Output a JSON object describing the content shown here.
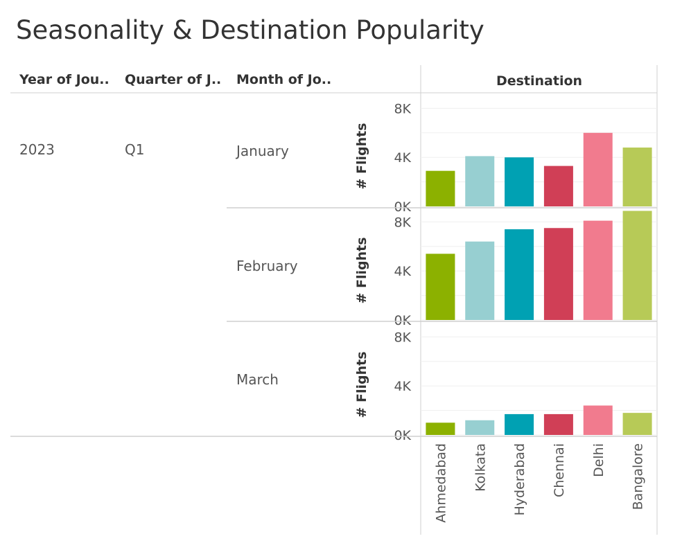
{
  "title": "Seasonality & Destination Popularity",
  "headers": {
    "year": "Year of Jou..",
    "quarter": "Quarter of J..",
    "month": "Month of Jo..",
    "destination": "Destination"
  },
  "rows": {
    "year": "2023",
    "quarter": "Q1"
  },
  "colors": {
    "Ahmedabad": "#8cb100",
    "Kolkata": "#97cfd1",
    "Hyderabad": "#00a1b3",
    "Chennai": "#d03f56",
    "Delhi": "#f17b8e",
    "Bangalore": "#b7ca57"
  },
  "chart_data": {
    "type": "bar",
    "ylabel": "# Flights",
    "ylim": [
      0,
      9000
    ],
    "yticks": [
      0,
      4000,
      8000
    ],
    "ytick_labels": [
      "0K",
      "4K",
      "8K"
    ],
    "grid": true,
    "categories": [
      "Ahmedabad",
      "Kolkata",
      "Hyderabad",
      "Chennai",
      "Delhi",
      "Bangalore"
    ],
    "series": [
      {
        "name": "January",
        "values": [
          2900,
          4100,
          4000,
          3300,
          6000,
          4800
        ]
      },
      {
        "name": "February",
        "values": [
          5400,
          6400,
          7400,
          7500,
          8100,
          8900
        ]
      },
      {
        "name": "March",
        "values": [
          1000,
          1200,
          1700,
          1700,
          2400,
          1800
        ]
      }
    ]
  }
}
